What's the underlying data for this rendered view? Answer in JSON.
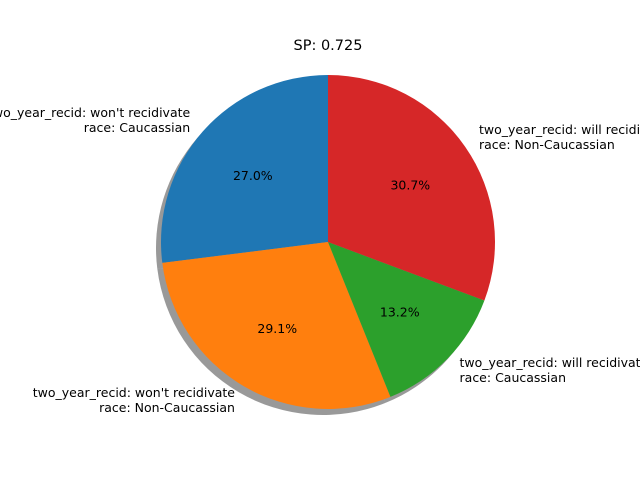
{
  "chart_data": {
    "type": "pie",
    "title": "SP: 0.725",
    "shadow": true,
    "start_angle_deg": 90,
    "direction": "counterclockwise",
    "slices": [
      {
        "label_lines": [
          "two_year_recid: won't recidivate",
          "race: Caucassian"
        ],
        "value": 27.0,
        "pct_label": "27.0%",
        "color": "#1f77b4"
      },
      {
        "label_lines": [
          "two_year_recid: won't recidivate",
          "race: Non-Caucassian"
        ],
        "value": 29.1,
        "pct_label": "29.1%",
        "color": "#ff7f0e"
      },
      {
        "label_lines": [
          "two_year_recid: will recidivate",
          "race: Caucassian"
        ],
        "value": 13.2,
        "pct_label": "13.2%",
        "color": "#2ca02c"
      },
      {
        "label_lines": [
          "two_year_recid: will recidivate",
          "race: Non-Caucassian"
        ],
        "value": 30.7,
        "pct_label": "30.7%",
        "color": "#d62728"
      }
    ]
  }
}
